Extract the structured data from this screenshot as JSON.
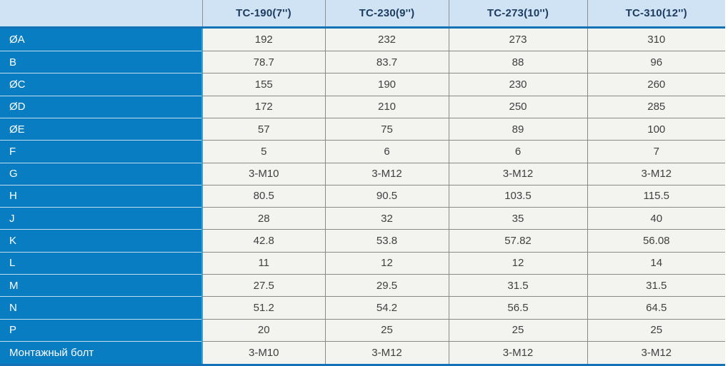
{
  "table": {
    "header": {
      "blank": "",
      "columns": [
        "TC-190(7'')",
        "TC-230(9'')",
        "TC-273(10'')",
        "TC-310(12'')"
      ]
    },
    "rows": [
      {
        "label": "ØA",
        "values": [
          "192",
          "232",
          "273",
          "310"
        ]
      },
      {
        "label": "B",
        "values": [
          "78.7",
          "83.7",
          "88",
          "96"
        ]
      },
      {
        "label": "ØC",
        "values": [
          "155",
          "190",
          "230",
          "260"
        ]
      },
      {
        "label": "ØD",
        "values": [
          "172",
          "210",
          "250",
          "285"
        ]
      },
      {
        "label": "ØE",
        "values": [
          "57",
          "75",
          "89",
          "100"
        ]
      },
      {
        "label": "F",
        "values": [
          "5",
          "6",
          "6",
          "7"
        ]
      },
      {
        "label": "G",
        "values": [
          "3-M10",
          "3-M12",
          "3-M12",
          "3-M12"
        ]
      },
      {
        "label": "H",
        "values": [
          "80.5",
          "90.5",
          "103.5",
          "115.5"
        ]
      },
      {
        "label": "J",
        "values": [
          "28",
          "32",
          "35",
          "40"
        ]
      },
      {
        "label": "K",
        "values": [
          "42.8",
          "53.8",
          "57.82",
          "56.08"
        ]
      },
      {
        "label": "L",
        "values": [
          "11",
          "12",
          "12",
          "14"
        ]
      },
      {
        "label": "M",
        "values": [
          "27.5",
          "29.5",
          "31.5",
          "31.5"
        ]
      },
      {
        "label": "N",
        "values": [
          "51.2",
          "54.2",
          "56.5",
          "64.5"
        ]
      },
      {
        "label": "P",
        "values": [
          "20",
          "25",
          "25",
          "25"
        ]
      },
      {
        "label": "Монтажный болт",
        "values": [
          "3-M10",
          "3-M12",
          "3-M12",
          "3-M12"
        ]
      }
    ],
    "colors": {
      "header_bg": "#cfe3f5",
      "header_text": "#1e3c60",
      "accent_line": "#1371b5",
      "label_column_bg": "#087dc2",
      "label_text": "#ffffff",
      "cell_bg": "#f3f3f0",
      "cell_text": "#404042",
      "grid_line": "#8a8a8a"
    }
  }
}
